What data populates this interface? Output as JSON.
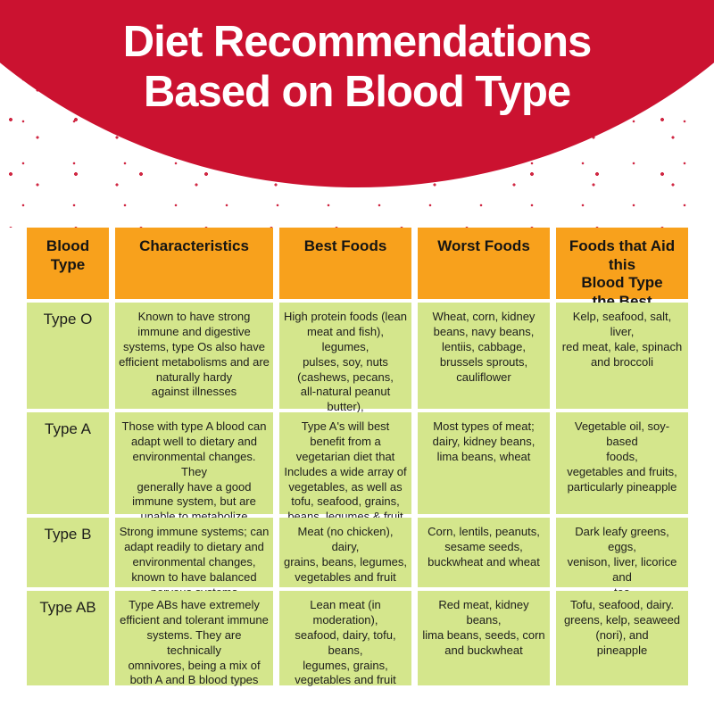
{
  "header": {
    "title_line1": "Diet Recommendations",
    "title_line2": "Based on Blood Type"
  },
  "colors": {
    "red": "#cb1230",
    "orange": "#f8a11c",
    "green": "#d4e68c"
  },
  "table": {
    "columns": [
      "Blood Type",
      "Characteristics",
      "Best Foods",
      "Worst Foods",
      "Foods that Aid this\nBlood Type\nthe Best"
    ],
    "rows": [
      {
        "blood_type": "Type O",
        "characteristics": "Known to have strong\nimmune and digestive\nsystems, type Os also have\nefficient metabolisms and are\nnaturally hardy\nagainst illnesses",
        "best_foods": "High protein foods (lean\nmeat and fish), legumes,\npulses, soy, nuts\n(cashews, pecans,\nall-natural peanut butter),\nyellow & red vegetables\n& fruits",
        "worst_foods": "Wheat, corn, kidney\nbeans, navy beans,\nlentiis, cabbage,\nbrussels sprouts,\ncauliflower",
        "aid_foods": "Kelp, seafood, salt, liver,\nred meat, kale, spinach\nand broccoli"
      },
      {
        "blood_type": "Type A",
        "characteristics": "Those with type A blood can\nadapt well to dietary and\nenvironmental changes. They\ngenerally have a good\nimmune system, but are\nunable to metabolize\nnutrients easily",
        "best_foods": "Type A's will best\nbenefit from a\nvegetarian diet that\nIncludes a wide array of\nvegetables, as well as\ntofu, seafood, grains,\nbeans, legumes & fruit",
        "worst_foods": "Most types of meat;\ndairy, kidney beans,\nlima beans, wheat",
        "aid_foods": "Vegetable oil, soy-based\nfoods,\nvegetables and fruits,\nparticularly pineapple"
      },
      {
        "blood_type": "Type B",
        "characteristics": "Strong immune systems; can\nadapt readily to dietary and\nenvironmental changes,\nknown to have balanced\nnervous systems",
        "best_foods": "Meat (no chicken), dairy,\ngrains, beans, legumes,\nvegetables and fruit",
        "worst_foods": "Corn, lentils, peanuts,\nsesame seeds,\nbuckwheat and wheat",
        "aid_foods": "Dark leafy greens, eggs,\nvenison, liver, licorice and\ntea"
      },
      {
        "blood_type": "Type AB",
        "characteristics": "Type ABs have extremely\nefficient and tolerant immune\nsystems. They are technically\nomnivores, being a mix of\nboth A and B blood types",
        "best_foods": "Lean meat (in moderation),\nseafood, dairy, tofu, beans,\nlegumes, grains,\nvegetables and fruit",
        "worst_foods": "Red meat, kidney beans,\nlima beans, seeds, corn\nand buckwheat",
        "aid_foods": "Tofu, seafood, dairy.\ngreens, kelp, seaweed\n(nori), and\npineapple"
      }
    ]
  }
}
